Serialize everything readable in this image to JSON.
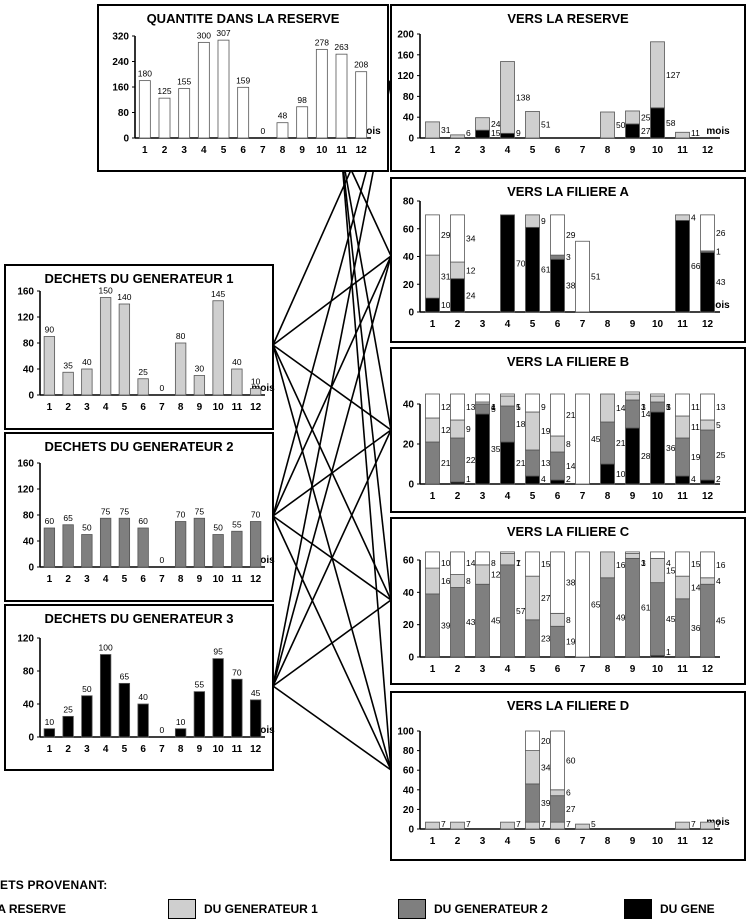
{
  "colors": {
    "reserve": "#ffffff",
    "gen1": "#cfcfcf",
    "gen2": "#7f7f7f",
    "gen3": "#000000"
  },
  "legend": {
    "title": "ETS PROVENANT:",
    "items": [
      {
        "key": "reserve",
        "label": "LA RESERVE"
      },
      {
        "key": "gen1",
        "label": "DU GENERATEUR 1"
      },
      {
        "key": "gen2",
        "label": "DU GENERATEUR 2"
      },
      {
        "key": "gen3",
        "label": "DU GENE"
      }
    ]
  },
  "chart_data": [
    {
      "id": "quantite",
      "type": "bar",
      "title": "QUANTITE DANS LA RESERVE",
      "xlabel": "mois",
      "categories": [
        "1",
        "2",
        "3",
        "4",
        "5",
        "6",
        "7",
        "8",
        "9",
        "10",
        "11",
        "12"
      ],
      "ylim": [
        0,
        320
      ],
      "yticks": [
        0,
        80,
        160,
        240,
        320
      ],
      "series": [
        {
          "color_key": "reserve",
          "values": [
            180,
            125,
            155,
            300,
            307,
            159,
            0,
            48,
            98,
            278,
            263,
            208
          ]
        }
      ]
    },
    {
      "id": "reserve",
      "type": "bar",
      "title": "VERS LA RESERVE",
      "xlabel": "mois",
      "categories": [
        "1",
        "2",
        "3",
        "4",
        "5",
        "6",
        "7",
        "8",
        "9",
        "10",
        "11",
        "12"
      ],
      "ylim": [
        0,
        200
      ],
      "yticks": [
        0,
        40,
        80,
        120,
        160,
        200
      ],
      "series": [
        {
          "color_key": "gen3",
          "values": [
            0,
            0,
            15,
            9,
            0,
            0,
            0,
            0,
            27,
            58,
            0,
            0
          ]
        },
        {
          "color_key": "gen1",
          "values": [
            31,
            6,
            24,
            138,
            51,
            0,
            0,
            50,
            25,
            127,
            11,
            0
          ]
        }
      ]
    },
    {
      "id": "gen1",
      "type": "bar",
      "title": "DECHETS DU GENERATEUR 1",
      "xlabel": "mois",
      "categories": [
        "1",
        "2",
        "3",
        "4",
        "5",
        "6",
        "7",
        "8",
        "9",
        "10",
        "11",
        "12"
      ],
      "ylim": [
        0,
        160
      ],
      "yticks": [
        0,
        40,
        80,
        120,
        160
      ],
      "series": [
        {
          "color_key": "gen1",
          "values": [
            90,
            35,
            40,
            150,
            140,
            25,
            0,
            80,
            30,
            145,
            40,
            10
          ]
        }
      ]
    },
    {
      "id": "gen2",
      "type": "bar",
      "title": "DECHETS DU GENERATEUR 2",
      "xlabel": "mois",
      "categories": [
        "1",
        "2",
        "3",
        "4",
        "5",
        "6",
        "7",
        "8",
        "9",
        "10",
        "11",
        "12"
      ],
      "ylim": [
        0,
        160
      ],
      "yticks": [
        0,
        40,
        80,
        120,
        160
      ],
      "series": [
        {
          "color_key": "gen2",
          "values": [
            60,
            65,
            50,
            75,
            75,
            60,
            0,
            70,
            75,
            50,
            55,
            70
          ]
        }
      ]
    },
    {
      "id": "gen3",
      "type": "bar",
      "title": "DECHETS DU GENERATEUR 3",
      "xlabel": "mois",
      "categories": [
        "1",
        "2",
        "3",
        "4",
        "5",
        "6",
        "7",
        "8",
        "9",
        "10",
        "11",
        "12"
      ],
      "ylim": [
        0,
        120
      ],
      "yticks": [
        0,
        40,
        80,
        120
      ],
      "series": [
        {
          "color_key": "gen3",
          "values": [
            10,
            25,
            50,
            100,
            65,
            40,
            0,
            10,
            55,
            95,
            70,
            45
          ]
        }
      ]
    },
    {
      "id": "filA",
      "type": "bar",
      "title": "VERS LA FILIERE A",
      "xlabel": "mois",
      "categories": [
        "1",
        "2",
        "3",
        "4",
        "5",
        "6",
        "7",
        "8",
        "9",
        "10",
        "11",
        "12"
      ],
      "ylim": [
        0,
        80
      ],
      "yticks": [
        0,
        20,
        40,
        60,
        80
      ],
      "series": [
        {
          "color_key": "gen3",
          "values": [
            10,
            24,
            0,
            70,
            61,
            38,
            0,
            0,
            0,
            0,
            66,
            43
          ]
        },
        {
          "color_key": "gen2",
          "values": [
            0,
            0,
            0,
            0,
            0,
            3,
            0,
            0,
            0,
            0,
            0,
            1
          ]
        },
        {
          "color_key": "gen1",
          "values": [
            31,
            12,
            0,
            0,
            9,
            0,
            0,
            0,
            0,
            0,
            4,
            0
          ]
        },
        {
          "color_key": "reserve",
          "values": [
            29,
            34,
            0,
            0,
            0,
            29,
            51,
            0,
            0,
            0,
            0,
            26
          ]
        }
      ]
    },
    {
      "id": "filB",
      "type": "bar",
      "title": "VERS LA FILIERE B",
      "xlabel": "",
      "categories": [
        "1",
        "2",
        "3",
        "4",
        "5",
        "6",
        "7",
        "8",
        "9",
        "10",
        "11",
        "12"
      ],
      "ylim": [
        0,
        40
      ],
      "yticks": [
        0,
        20,
        40
      ],
      "series": [
        {
          "color_key": "gen3",
          "values": [
            0,
            1,
            35,
            21,
            4,
            2,
            0,
            10,
            28,
            36,
            4,
            2
          ]
        },
        {
          "color_key": "gen2",
          "values": [
            21,
            22,
            5,
            18,
            13,
            14,
            0,
            21,
            14,
            5,
            19,
            25
          ]
        },
        {
          "color_key": "gen1",
          "values": [
            12,
            9,
            1,
            5,
            19,
            8,
            0,
            14,
            3,
            3,
            11,
            5
          ]
        },
        {
          "color_key": "reserve",
          "values": [
            12,
            13,
            4,
            1,
            9,
            21,
            45,
            0,
            1,
            1,
            11,
            13
          ]
        }
      ]
    },
    {
      "id": "filC",
      "type": "bar",
      "title": "VERS LA FILIERE C",
      "xlabel": "",
      "categories": [
        "1",
        "2",
        "3",
        "4",
        "5",
        "6",
        "7",
        "8",
        "9",
        "10",
        "11",
        "12"
      ],
      "ylim": [
        0,
        60
      ],
      "yticks": [
        0,
        20,
        40,
        60
      ],
      "series": [
        {
          "color_key": "gen3",
          "values": [
            0,
            0,
            0,
            0,
            0,
            0,
            0,
            0,
            0,
            1,
            0,
            0
          ]
        },
        {
          "color_key": "gen2",
          "values": [
            39,
            43,
            45,
            57,
            23,
            19,
            0,
            49,
            61,
            45,
            36,
            45
          ]
        },
        {
          "color_key": "gen1",
          "values": [
            16,
            8,
            12,
            7,
            27,
            8,
            0,
            16,
            3,
            15,
            14,
            4
          ]
        },
        {
          "color_key": "reserve",
          "values": [
            10,
            14,
            8,
            1,
            15,
            38,
            65,
            0,
            1,
            4,
            15,
            16
          ]
        }
      ]
    },
    {
      "id": "filD",
      "type": "bar",
      "title": "VERS LA FILIERE D",
      "xlabel": "mois",
      "categories": [
        "1",
        "2",
        "3",
        "4",
        "5",
        "6",
        "7",
        "8",
        "9",
        "10",
        "11",
        "12"
      ],
      "ylim": [
        0,
        100
      ],
      "yticks": [
        0,
        20,
        40,
        60,
        80,
        100
      ],
      "series": [
        {
          "color_key": "gen1",
          "values": [
            7,
            7,
            0,
            7,
            7,
            7,
            5,
            0,
            0,
            0,
            7,
            7
          ]
        },
        {
          "color_key": "gen2",
          "values": [
            0,
            0,
            0,
            0,
            39,
            27,
            0,
            0,
            0,
            0,
            0,
            0
          ]
        },
        {
          "color_key": "gen1",
          "values": [
            0,
            0,
            0,
            0,
            34,
            6,
            0,
            0,
            0,
            0,
            0,
            0
          ]
        },
        {
          "color_key": "reserve",
          "values": [
            0,
            0,
            0,
            0,
            20,
            60,
            0,
            0,
            0,
            0,
            0,
            0
          ]
        }
      ]
    }
  ]
}
